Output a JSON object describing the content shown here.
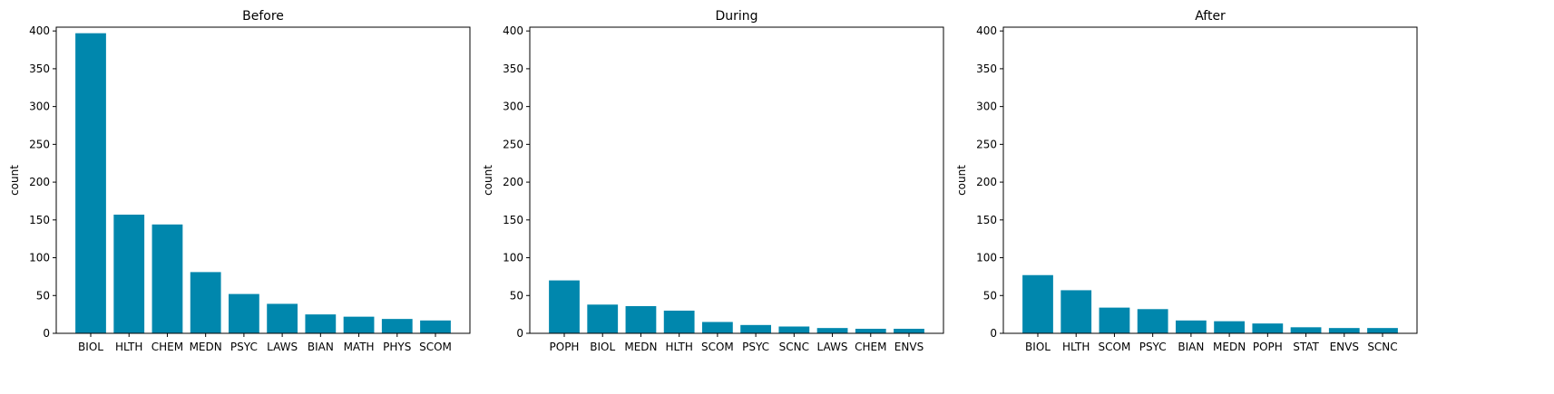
{
  "bar_color": "#0087ad",
  "chart_data": [
    {
      "type": "bar",
      "title": "Before",
      "xlabel": "",
      "ylabel": "count",
      "ylim": [
        0,
        405
      ],
      "yticks": [
        0,
        50,
        100,
        150,
        200,
        250,
        300,
        350,
        400
      ],
      "categories": [
        "BIOL",
        "HLTH",
        "CHEM",
        "MEDN",
        "PSYC",
        "LAWS",
        "BIAN",
        "MATH",
        "PHYS",
        "SCOM"
      ],
      "values": [
        397,
        157,
        144,
        81,
        52,
        39,
        25,
        22,
        19,
        17
      ]
    },
    {
      "type": "bar",
      "title": "During",
      "xlabel": "",
      "ylabel": "count",
      "ylim": [
        0,
        405
      ],
      "yticks": [
        0,
        50,
        100,
        150,
        200,
        250,
        300,
        350,
        400
      ],
      "categories": [
        "POPH",
        "BIOL",
        "MEDN",
        "HLTH",
        "SCOM",
        "PSYC",
        "SCNC",
        "LAWS",
        "CHEM",
        "ENVS"
      ],
      "values": [
        70,
        38,
        36,
        30,
        15,
        11,
        9,
        7,
        6,
        6
      ]
    },
    {
      "type": "bar",
      "title": "After",
      "xlabel": "",
      "ylabel": "count",
      "ylim": [
        0,
        405
      ],
      "yticks": [
        0,
        50,
        100,
        150,
        200,
        250,
        300,
        350,
        400
      ],
      "categories": [
        "BIOL",
        "HLTH",
        "SCOM",
        "PSYC",
        "BIAN",
        "MEDN",
        "POPH",
        "STAT",
        "ENVS",
        "SCNC"
      ],
      "values": [
        77,
        57,
        34,
        32,
        17,
        16,
        13,
        8,
        7,
        7
      ]
    }
  ]
}
